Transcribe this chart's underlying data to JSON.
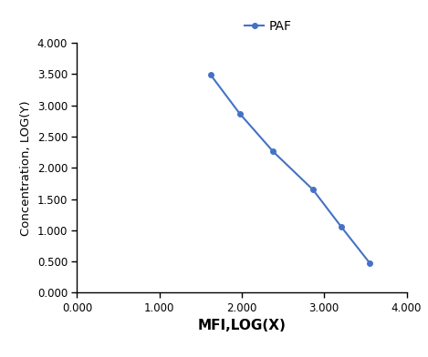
{
  "x": [
    1.62,
    1.973,
    2.38,
    2.863,
    3.204,
    3.556
  ],
  "y": [
    3.49,
    2.87,
    2.26,
    1.65,
    1.06,
    0.47
  ],
  "line_color": "#4472C4",
  "marker": "o",
  "marker_size": 4,
  "legend_label": "PAF",
  "xlabel": "MFI,LOG(X)",
  "ylabel": "Concentration, LOG(Y)",
  "xlim": [
    0.0,
    4.0
  ],
  "ylim": [
    0.0,
    4.0
  ],
  "xticks": [
    0.0,
    1.0,
    2.0,
    3.0,
    4.0
  ],
  "yticks": [
    0.0,
    0.5,
    1.0,
    1.5,
    2.0,
    2.5,
    3.0,
    3.5,
    4.0
  ],
  "xtick_labels": [
    "0.000",
    "1.000",
    "2.000",
    "3.000",
    "4.000"
  ],
  "ytick_labels": [
    "0.000",
    "0.500",
    "1.000",
    "1.500",
    "2.000",
    "2.500",
    "3.000",
    "3.500",
    "4.000"
  ],
  "background_color": "#ffffff",
  "xlabel_fontsize": 11,
  "ylabel_fontsize": 9.5,
  "tick_fontsize": 8.5,
  "legend_fontsize": 10,
  "line_width": 1.5,
  "spine_color": "#000000",
  "tick_color": "#000000"
}
